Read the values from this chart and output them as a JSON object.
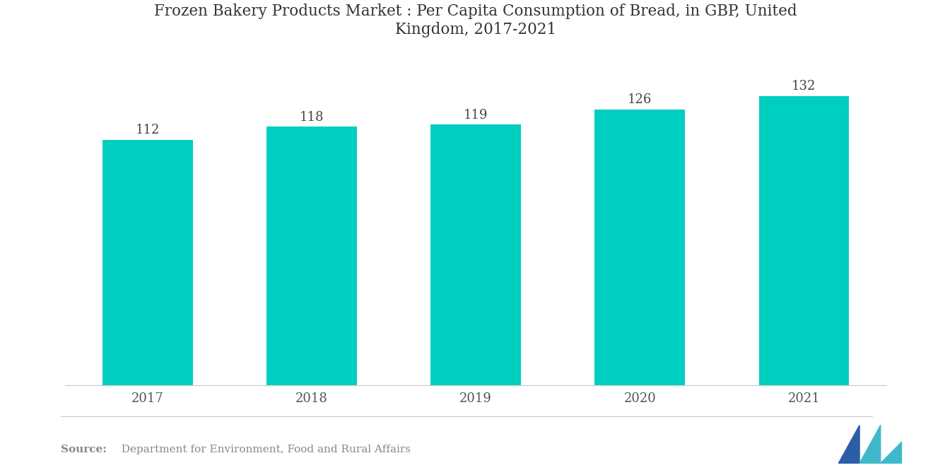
{
  "title": "Frozen Bakery Products Market : Per Capita Consumption of Bread, in GBP, United\nKingdom, 2017-2021",
  "categories": [
    "2017",
    "2018",
    "2019",
    "2020",
    "2021"
  ],
  "values": [
    112,
    118,
    119,
    126,
    132
  ],
  "bar_color": "#00CEC0",
  "background_color": "#FFFFFF",
  "title_fontsize": 15.5,
  "label_fontsize": 13,
  "value_fontsize": 13,
  "source_text": "  Department for Environment, Food and Rural Affairs",
  "source_bold": "Source:",
  "ylim": [
    0,
    148
  ],
  "bar_width": 0.55
}
